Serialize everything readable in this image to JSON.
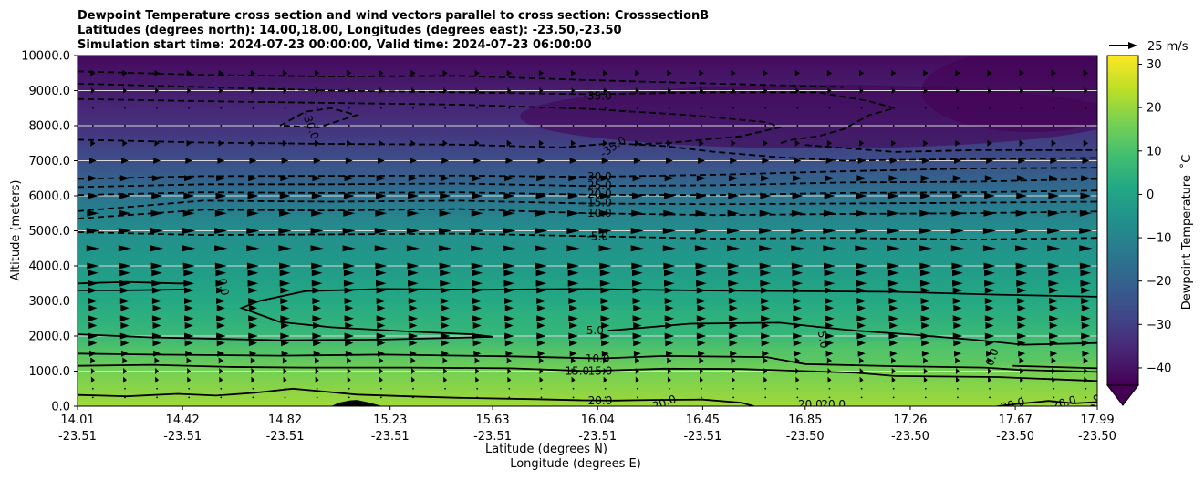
{
  "chart_data": {
    "type": "contour-cross-section",
    "title_lines": [
      "Dewpoint Temperature cross section and wind vectors parallel to cross section: CrosssectionB",
      "Latitudes (degrees north): 14.00,18.00, Longitudes (degrees east): -23.50,-23.50",
      "Simulation start time: 2024-07-23 00:00:00, Valid time: 2024-07-23 06:00:00"
    ],
    "ylabel": "Altitude (meters)",
    "xlabel_line1": "Latitude (degrees N)",
    "xlabel_line2": "Longitude (degrees E)",
    "ylim": [
      0,
      10000
    ],
    "y_ticks": [
      0,
      1000,
      2000,
      3000,
      4000,
      5000,
      6000,
      7000,
      8000,
      9000,
      10000
    ],
    "y_tick_labels": [
      "0.0",
      "1000.0",
      "2000.0",
      "3000.0",
      "4000.0",
      "5000.0",
      "6000.0",
      "7000.0",
      "8000.0",
      "9000.0",
      "10000.0"
    ],
    "xlim": [
      14.01,
      17.99
    ],
    "x_ticks": [
      {
        "lat": "14.01",
        "lon": "-23.51",
        "pos": 14.01
      },
      {
        "lat": "14.42",
        "lon": "-23.51",
        "pos": 14.42
      },
      {
        "lat": "14.82",
        "lon": "-23.51",
        "pos": 14.82
      },
      {
        "lat": "15.23",
        "lon": "-23.51",
        "pos": 15.23
      },
      {
        "lat": "15.63",
        "lon": "-23.51",
        "pos": 15.63
      },
      {
        "lat": "16.04",
        "lon": "-23.51",
        "pos": 16.04
      },
      {
        "lat": "16.45",
        "lon": "-23.51",
        "pos": 16.45
      },
      {
        "lat": "16.85",
        "lon": "-23.50",
        "pos": 16.85
      },
      {
        "lat": "17.26",
        "lon": "-23.50",
        "pos": 17.26
      },
      {
        "lat": "17.67",
        "lon": "-23.50",
        "pos": 17.67
      },
      {
        "lat": "17.99",
        "lon": "-23.50",
        "pos": 17.99
      }
    ],
    "colorbar": {
      "label": "Dewpoint Temperature  ˚C",
      "range": [
        -44,
        32
      ],
      "ticks": [
        30,
        20,
        10,
        0,
        -10,
        -20,
        -30,
        -40
      ],
      "tick_labels": [
        "30",
        "20",
        "10",
        "0",
        "−10",
        "−20",
        "−30",
        "−40"
      ],
      "colormap": "viridis",
      "extend": "min"
    },
    "quiver_key": "25 m/s",
    "dewpoint_profile_c": [
      {
        "alt": 0,
        "value": 21
      },
      {
        "alt": 1000,
        "value": 16
      },
      {
        "alt": 2000,
        "value": 7
      },
      {
        "alt": 3000,
        "value": 2
      },
      {
        "alt": 4000,
        "value": -3
      },
      {
        "alt": 5000,
        "value": -7
      },
      {
        "alt": 6000,
        "value": -15
      },
      {
        "alt": 7000,
        "value": -26
      },
      {
        "alt": 8000,
        "value": -33
      },
      {
        "alt": 9000,
        "value": -38
      },
      {
        "alt": 10000,
        "value": -42
      }
    ],
    "contour_labels": [
      {
        "text": "-35.0",
        "lat": 16.04,
        "alt": 8850
      },
      {
        "text": "-30.0",
        "lat": 14.92,
        "alt": 8000,
        "rotate": 70
      },
      {
        "text": "-35.0",
        "lat": 16.1,
        "alt": 7400,
        "rotate": -35
      },
      {
        "text": "-30.0",
        "lat": 16.04,
        "alt": 6550
      },
      {
        "text": "-25.0",
        "lat": 16.04,
        "alt": 6300
      },
      {
        "text": "-20.0",
        "lat": 16.04,
        "alt": 6050
      },
      {
        "text": "-15.0",
        "lat": 16.04,
        "alt": 5800
      },
      {
        "text": "-10.0",
        "lat": 16.04,
        "alt": 5500
      },
      {
        "text": "-5.0",
        "lat": 16.04,
        "alt": 4850
      },
      {
        "text": "0.0",
        "lat": 14.58,
        "alt": 3400,
        "rotate": 80
      },
      {
        "text": "5.0",
        "lat": 16.03,
        "alt": 2150
      },
      {
        "text": "5.0",
        "lat": 16.92,
        "alt": 1900,
        "rotate": 80
      },
      {
        "text": "10.0",
        "lat": 16.04,
        "alt": 1350
      },
      {
        "text": "15.0",
        "lat": 15.96,
        "alt": 1000
      },
      {
        "text": "15.0",
        "lat": 16.05,
        "alt": 1000
      },
      {
        "text": "0.0",
        "lat": 17.58,
        "alt": 1400,
        "rotate": -70
      },
      {
        "text": "20.0",
        "lat": 16.05,
        "alt": 150
      },
      {
        "text": "20.0",
        "lat": 16.3,
        "alt": 100,
        "rotate": -20
      },
      {
        "text": "20.0",
        "lat": 16.87,
        "alt": 50
      },
      {
        "text": "20.0",
        "lat": 16.96,
        "alt": 50
      },
      {
        "text": "20.0",
        "lat": 17.66,
        "alt": 50,
        "rotate": -15
      },
      {
        "text": "20.0",
        "lat": 17.86,
        "alt": 100,
        "rotate": -15
      },
      {
        "text": "20.0",
        "lat": 17.98,
        "alt": 0,
        "rotate": -70
      }
    ],
    "solid_contours": [
      {
        "level": 20,
        "points": [
          [
            14.01,
            320
          ],
          [
            14.2,
            280
          ],
          [
            14.4,
            350
          ],
          [
            14.55,
            300
          ],
          [
            14.7,
            380
          ],
          [
            14.85,
            500
          ],
          [
            14.95,
            430
          ],
          [
            15.1,
            330
          ],
          [
            15.3,
            280
          ],
          [
            15.5,
            240
          ],
          [
            15.8,
            200
          ],
          [
            15.98,
            170
          ],
          [
            16.1,
            160
          ],
          [
            16.25,
            180
          ],
          [
            16.45,
            190
          ],
          [
            16.6,
            100
          ],
          [
            16.65,
            0
          ]
        ]
      },
      {
        "level": 20,
        "points": [
          [
            17.6,
            0
          ],
          [
            17.7,
            80
          ],
          [
            17.8,
            150
          ],
          [
            17.9,
            80
          ],
          [
            17.99,
            120
          ]
        ]
      },
      {
        "level": 15,
        "points": [
          [
            14.01,
            1150
          ],
          [
            14.3,
            1180
          ],
          [
            14.6,
            1120
          ],
          [
            14.9,
            1100
          ],
          [
            15.3,
            1100
          ],
          [
            15.7,
            1080
          ],
          [
            16.0,
            1000
          ],
          [
            16.3,
            1070
          ],
          [
            16.6,
            1060
          ],
          [
            16.85,
            1000
          ],
          [
            17.05,
            950
          ],
          [
            17.2,
            860
          ],
          [
            17.6,
            830
          ],
          [
            17.99,
            720
          ]
        ]
      },
      {
        "level": 10,
        "points": [
          [
            14.01,
            1500
          ],
          [
            14.3,
            1470
          ],
          [
            14.8,
            1440
          ],
          [
            15.2,
            1470
          ],
          [
            15.7,
            1420
          ],
          [
            16.05,
            1360
          ],
          [
            16.3,
            1430
          ],
          [
            16.7,
            1400
          ],
          [
            16.85,
            1200
          ],
          [
            17.2,
            1140
          ],
          [
            17.55,
            1100
          ],
          [
            17.7,
            1030
          ],
          [
            17.99,
            980
          ]
        ]
      },
      {
        "level": 5,
        "points": [
          [
            14.01,
            2050
          ],
          [
            14.3,
            1960
          ],
          [
            14.8,
            1880
          ],
          [
            15.2,
            1900
          ],
          [
            15.5,
            1950
          ],
          [
            15.63,
            1980
          ],
          [
            15.55,
            2050
          ],
          [
            15.3,
            2130
          ],
          [
            15.0,
            2250
          ],
          [
            14.8,
            2400
          ],
          [
            14.65,
            2800
          ],
          [
            14.72,
            3000
          ],
          [
            14.9,
            3280
          ],
          [
            15.2,
            3340
          ],
          [
            15.6,
            3320
          ],
          [
            16.0,
            3340
          ],
          [
            16.4,
            3300
          ],
          [
            16.8,
            3280
          ],
          [
            17.2,
            3260
          ],
          [
            17.6,
            3180
          ],
          [
            17.99,
            3120
          ]
        ]
      },
      {
        "level": 5,
        "points": [
          [
            16.08,
            2150
          ],
          [
            16.4,
            2350
          ],
          [
            16.75,
            2380
          ],
          [
            16.9,
            2260
          ],
          [
            17.05,
            2150
          ],
          [
            17.25,
            2050
          ],
          [
            17.5,
            1900
          ],
          [
            17.7,
            1750
          ],
          [
            17.99,
            1800
          ]
        ]
      },
      {
        "level": 0,
        "points": [
          [
            14.01,
            3500
          ],
          [
            14.2,
            3540
          ],
          [
            14.4,
            3500
          ],
          [
            14.45,
            3500
          ]
        ]
      },
      {
        "level": 0,
        "points": [
          [
            14.01,
            3300
          ],
          [
            14.2,
            3300
          ],
          [
            14.45,
            3330
          ]
        ]
      },
      {
        "level": 0,
        "points": [
          [
            17.66,
            1150
          ],
          [
            17.9,
            1100
          ],
          [
            17.99,
            1080
          ]
        ]
      }
    ],
    "dashed_contours": [
      {
        "level": -5,
        "points": [
          [
            14.01,
            4960
          ],
          [
            14.5,
            4880
          ],
          [
            15.0,
            4900
          ],
          [
            15.5,
            4920
          ],
          [
            16.0,
            4850
          ],
          [
            16.5,
            4780
          ],
          [
            17.0,
            4800
          ],
          [
            17.5,
            4750
          ],
          [
            17.99,
            4800
          ]
        ]
      },
      {
        "level": -10,
        "points": [
          [
            14.01,
            5350
          ],
          [
            14.5,
            5600
          ],
          [
            15.0,
            5580
          ],
          [
            15.5,
            5620
          ],
          [
            16.0,
            5500
          ],
          [
            16.5,
            5450
          ],
          [
            17.0,
            5480
          ],
          [
            17.5,
            5500
          ],
          [
            17.99,
            5550
          ]
        ]
      },
      {
        "level": -15,
        "points": [
          [
            14.01,
            5560
          ],
          [
            14.5,
            5860
          ],
          [
            15.0,
            5830
          ],
          [
            15.5,
            5860
          ],
          [
            16.0,
            5780
          ],
          [
            16.5,
            5760
          ],
          [
            17.0,
            5780
          ],
          [
            17.5,
            5800
          ],
          [
            17.99,
            5830
          ]
        ]
      },
      {
        "level": -20,
        "points": [
          [
            14.01,
            6020
          ],
          [
            14.5,
            6100
          ],
          [
            15.0,
            6080
          ],
          [
            15.5,
            6100
          ],
          [
            16.0,
            6030
          ],
          [
            16.5,
            6020
          ],
          [
            17.0,
            6080
          ],
          [
            17.5,
            6100
          ],
          [
            17.99,
            6150
          ]
        ]
      },
      {
        "level": -25,
        "points": [
          [
            14.01,
            6250
          ],
          [
            14.5,
            6330
          ],
          [
            15.0,
            6330
          ],
          [
            15.5,
            6350
          ],
          [
            16.0,
            6280
          ],
          [
            16.5,
            6300
          ],
          [
            17.0,
            6380
          ],
          [
            17.5,
            6400
          ],
          [
            17.99,
            6480
          ]
        ]
      },
      {
        "level": -30,
        "points": [
          [
            14.01,
            6480
          ],
          [
            14.5,
            6560
          ],
          [
            15.0,
            6570
          ],
          [
            15.5,
            6580
          ],
          [
            16.0,
            6540
          ],
          [
            16.5,
            6600
          ],
          [
            17.0,
            6700
          ],
          [
            17.5,
            6780
          ],
          [
            17.99,
            6800
          ]
        ]
      },
      {
        "level": -30,
        "points": [
          [
            14.01,
            7600
          ],
          [
            14.5,
            7520
          ],
          [
            15.0,
            7480
          ],
          [
            15.5,
            7460
          ],
          [
            15.9,
            7380
          ],
          [
            16.1,
            7500
          ],
          [
            16.3,
            7420
          ],
          [
            16.5,
            7250
          ],
          [
            16.75,
            7100
          ],
          [
            17.0,
            7000
          ],
          [
            17.5,
            7050
          ],
          [
            17.99,
            7080
          ]
        ]
      },
      {
        "level": -35,
        "points": [
          [
            14.01,
            8760
          ],
          [
            14.5,
            8700
          ],
          [
            15.0,
            8650
          ],
          [
            15.5,
            8600
          ],
          [
            16.0,
            8480
          ],
          [
            16.4,
            8300
          ],
          [
            16.7,
            8100
          ],
          [
            16.75,
            7950
          ],
          [
            16.6,
            7700
          ],
          [
            16.3,
            7500
          ],
          [
            16.2,
            7480
          ]
        ]
      },
      {
        "level": -30,
        "points": [
          [
            14.01,
            9200
          ],
          [
            14.5,
            9100
          ],
          [
            15.0,
            9000
          ],
          [
            15.5,
            8950
          ],
          [
            16.0,
            8900
          ],
          [
            16.5,
            8950
          ],
          [
            16.9,
            8950
          ],
          [
            17.1,
            8700
          ],
          [
            17.2,
            8500
          ],
          [
            17.1,
            8300
          ],
          [
            17.0,
            7900
          ],
          [
            16.9,
            7700
          ],
          [
            16.8,
            7600
          ],
          [
            16.75,
            7500
          ]
        ]
      },
      {
        "level": -35,
        "points": [
          [
            14.01,
            9550
          ],
          [
            14.5,
            9450
          ],
          [
            15.0,
            9400
          ],
          [
            15.5,
            9420
          ],
          [
            16.0,
            9300
          ],
          [
            16.5,
            9200
          ],
          [
            17.0,
            9100
          ]
        ]
      },
      {
        "level": -35,
        "points": [
          [
            14.8,
            8000
          ],
          [
            14.9,
            8400
          ],
          [
            15.0,
            8500
          ],
          [
            15.1,
            8300
          ],
          [
            14.95,
            7950
          ],
          [
            14.8,
            8000
          ]
        ]
      },
      {
        "level": -35,
        "points": [
          [
            16.85,
            7450
          ],
          [
            17.2,
            7250
          ],
          [
            17.5,
            7300
          ],
          [
            17.99,
            7300
          ]
        ]
      }
    ],
    "terrain": [
      [
        15.0,
        0
      ],
      [
        15.03,
        100
      ],
      [
        15.07,
        160
      ],
      [
        15.1,
        180
      ],
      [
        15.15,
        100
      ],
      [
        15.2,
        0
      ]
    ],
    "wind_grid": {
      "lat_step": 0.125,
      "alt_levels": [
        250,
        500,
        750,
        1000,
        1300,
        1500,
        1800,
        2000,
        2300,
        2500,
        2800,
        3000,
        3300,
        3500,
        3800,
        4000,
        4500,
        5000,
        5500,
        6000,
        6500,
        7000,
        7500,
        8000,
        8500,
        9000,
        9500
      ],
      "speed_ms": [
        1,
        2,
        3,
        3,
        4,
        6,
        7,
        8,
        7,
        8,
        7,
        8,
        8,
        9,
        9,
        10,
        11,
        11,
        10,
        9,
        8,
        6,
        4,
        2,
        2,
        3,
        4
      ]
    }
  }
}
